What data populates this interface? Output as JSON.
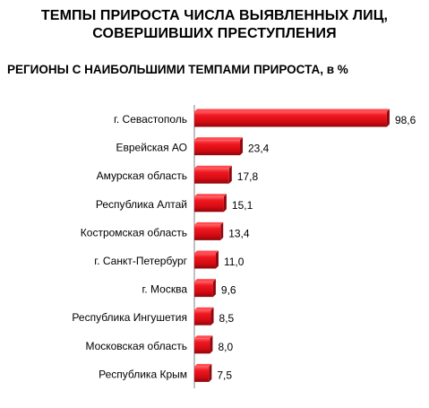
{
  "header": {
    "title_line1": "ТЕМПЫ ПРИРОСТА ЧИСЛА ВЫЯВЛЕННЫХ ЛИЦ,",
    "title_line2": "СОВЕРШИВШИХ ПРЕСТУПЛЕНИЯ",
    "subtitle": "РЕГИОНЫ С НАИБОЛЬШИМИ ТЕМПАМИ ПРИРОСТА, в %"
  },
  "chart_data": {
    "type": "bar",
    "orientation": "horizontal",
    "categories": [
      "г. Севастополь",
      "Еврейская АО",
      "Амурская область",
      "Республика Алтай",
      "Костромская область",
      "г. Санкт-Петербург",
      "г. Москва",
      "Республика Ингушетия",
      "Московская область",
      "Республика Крым"
    ],
    "values": [
      98.6,
      23.4,
      17.8,
      15.1,
      13.4,
      11.0,
      9.6,
      8.5,
      8.0,
      7.5
    ],
    "value_labels": [
      "98,6",
      "23,4",
      "17,8",
      "15,1",
      "13,4",
      "11,0",
      "9,6",
      "8,5",
      "8,0",
      "7,5"
    ],
    "title": "ТЕМПЫ ПРИРОСТА ЧИСЛА ВЫЯВЛЕННЫХ ЛИЦ, СОВЕРШИВШИХ ПРЕСТУПЛЕНИЯ",
    "subtitle": "РЕГИОНЫ С НАИБОЛЬШИМИ ТЕМПАМИ ПРИРОСТА, в %",
    "xlabel": "",
    "ylabel": "",
    "xlim": [
      0,
      100
    ],
    "grid": false,
    "legend": "none",
    "colors": {
      "bar": "#e3101a",
      "bar_dark": "#8e0a10",
      "bar_light": "#ff4a50",
      "axis": "#808080"
    }
  }
}
